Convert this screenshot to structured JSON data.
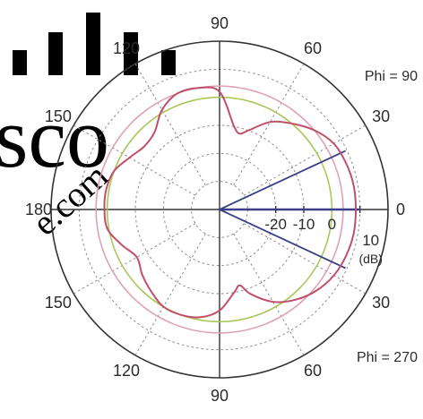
{
  "chart_data": {
    "type": "line",
    "projection": "polar",
    "angle_ticks": [
      {
        "deg": 0,
        "label": "0"
      },
      {
        "deg": 30,
        "label": "30"
      },
      {
        "deg": 60,
        "label": "60"
      },
      {
        "deg": 90,
        "label": "90"
      },
      {
        "deg": 120,
        "label": "120"
      },
      {
        "deg": 150,
        "label": "150"
      },
      {
        "deg": 180,
        "label": "180"
      },
      {
        "deg": 210,
        "label": "150"
      },
      {
        "deg": 240,
        "label": "120"
      },
      {
        "deg": 270,
        "label": "90"
      },
      {
        "deg": 300,
        "label": "60"
      },
      {
        "deg": 330,
        "label": "30"
      }
    ],
    "radial_ticks": [
      {
        "db": -20,
        "label": "-20"
      },
      {
        "db": -10,
        "label": "-10"
      },
      {
        "db": 0,
        "label": "0"
      },
      {
        "db": 10,
        "label": "10"
      }
    ],
    "radial_unit": "(dB)",
    "rlim": [
      -40,
      20
    ],
    "grid": true,
    "annotations": [
      {
        "text": "Phi = 90",
        "angle_deg": 30
      },
      {
        "text": "Phi = 270",
        "angle_deg": 330
      }
    ],
    "reference_circles": [
      {
        "db": 0,
        "color": "#a8c85a"
      },
      {
        "db": 4,
        "color": "#e0a0b4"
      }
    ],
    "series": [
      {
        "color": "#c0506a",
        "angles": [
          0,
          10,
          20,
          30,
          40,
          50,
          60,
          70,
          75,
          80,
          90,
          100,
          110,
          120,
          130,
          140,
          150,
          160,
          170,
          180,
          190,
          200,
          210,
          220,
          230,
          240,
          250,
          260,
          270,
          280,
          285,
          290,
          300,
          310,
          320,
          330,
          340,
          350
        ],
        "values": [
          8.5,
          8.5,
          8.0,
          7.0,
          4.0,
          0.0,
          -4.0,
          -10.0,
          -12.0,
          -10.0,
          2.0,
          4.0,
          4.0,
          1.0,
          -4.0,
          -5.0,
          -3.0,
          0.0,
          1.0,
          1.0,
          0.5,
          -3.0,
          -6.0,
          -4.0,
          -2.0,
          0.0,
          0.0,
          -1.0,
          -4.0,
          -10.0,
          -12.0,
          -8.0,
          -2.0,
          2.0,
          5.0,
          7.0,
          8.0,
          8.5
        ]
      },
      {
        "color": "#3a3f88",
        "angles": [
          0,
          25,
          335
        ],
        "values": [
          10,
          10,
          10
        ]
      }
    ]
  }
}
